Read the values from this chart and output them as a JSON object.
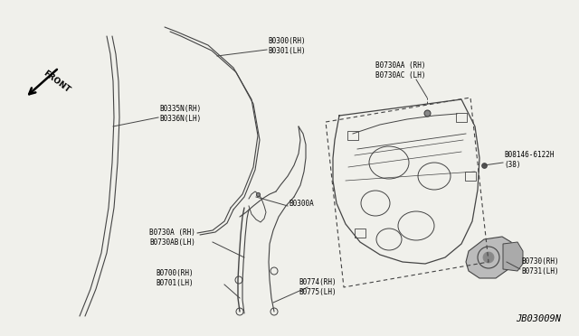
{
  "bg_color": "#f0f0eb",
  "line_color": "#444444",
  "diagram_id": "JB03009N",
  "figsize": [
    6.4,
    3.72
  ],
  "dpi": 100,
  "parts_labels": {
    "B0335N": "B0335N(RH)\nB0336N(LH)",
    "B0300": "B0300(RH)\nB0301(LH)",
    "B0300A": "B0300A",
    "B0730A": "B0730A (RH)\nB0730AB(LH)",
    "B0700": "B0700(RH)\nB0701(LH)",
    "B0774": "B0774(RH)\nB0775(LH)",
    "B0730AA": "B0730AA (RH)\nB0730AC (LH)",
    "B08146": "B08146-6122H\n(38)",
    "B0730": "B0730(RH)\nB0731(LH)"
  }
}
